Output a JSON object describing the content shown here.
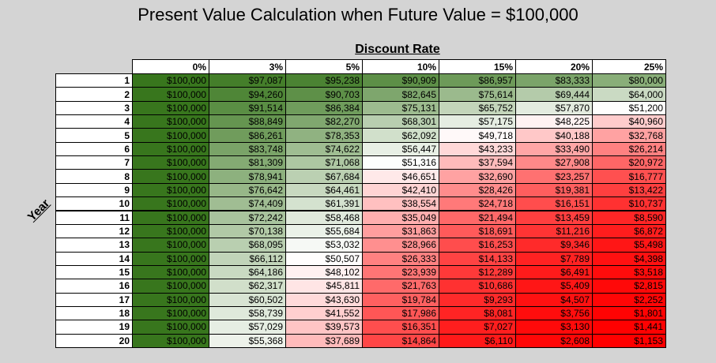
{
  "title": "Present Value Calculation when Future Value = $100,000",
  "column_header": "Discount Rate",
  "row_header": "Year",
  "table": {
    "columns": [
      "0%",
      "3%",
      "5%",
      "10%",
      "15%",
      "20%",
      "25%"
    ],
    "rows": [
      [
        "1",
        "$100,000",
        "$97,087",
        "$95,238",
        "$90,909",
        "$86,957",
        "$83,333",
        "$80,000"
      ],
      [
        "2",
        "$100,000",
        "$94,260",
        "$90,703",
        "$82,645",
        "$75,614",
        "$69,444",
        "$64,000"
      ],
      [
        "3",
        "$100,000",
        "$91,514",
        "$86,384",
        "$75,131",
        "$65,752",
        "$57,870",
        "$51,200"
      ],
      [
        "4",
        "$100,000",
        "$88,849",
        "$82,270",
        "$68,301",
        "$57,175",
        "$48,225",
        "$40,960"
      ],
      [
        "5",
        "$100,000",
        "$86,261",
        "$78,353",
        "$62,092",
        "$49,718",
        "$40,188",
        "$32,768"
      ],
      [
        "6",
        "$100,000",
        "$83,748",
        "$74,622",
        "$56,447",
        "$43,233",
        "$33,490",
        "$26,214"
      ],
      [
        "7",
        "$100,000",
        "$81,309",
        "$71,068",
        "$51,316",
        "$37,594",
        "$27,908",
        "$20,972"
      ],
      [
        "8",
        "$100,000",
        "$78,941",
        "$67,684",
        "$46,651",
        "$32,690",
        "$23,257",
        "$16,777"
      ],
      [
        "9",
        "$100,000",
        "$76,642",
        "$64,461",
        "$42,410",
        "$28,426",
        "$19,381",
        "$13,422"
      ],
      [
        "10",
        "$100,000",
        "$74,409",
        "$61,391",
        "$38,554",
        "$24,718",
        "$16,151",
        "$10,737"
      ],
      [
        "11",
        "$100,000",
        "$72,242",
        "$58,468",
        "$35,049",
        "$21,494",
        "$13,459",
        "$8,590"
      ],
      [
        "12",
        "$100,000",
        "$70,138",
        "$55,684",
        "$31,863",
        "$18,691",
        "$11,216",
        "$6,872"
      ],
      [
        "13",
        "$100,000",
        "$68,095",
        "$53,032",
        "$28,966",
        "$16,253",
        "$9,346",
        "$5,498"
      ],
      [
        "14",
        "$100,000",
        "$66,112",
        "$50,507",
        "$26,333",
        "$14,133",
        "$7,789",
        "$4,398"
      ],
      [
        "15",
        "$100,000",
        "$64,186",
        "$48,102",
        "$23,939",
        "$12,289",
        "$6,491",
        "$3,518"
      ],
      [
        "16",
        "$100,000",
        "$62,317",
        "$45,811",
        "$21,763",
        "$10,686",
        "$5,409",
        "$2,815"
      ],
      [
        "17",
        "$100,000",
        "$60,502",
        "$43,630",
        "$19,784",
        "$9,293",
        "$4,507",
        "$2,252"
      ],
      [
        "18",
        "$100,000",
        "$58,739",
        "$41,552",
        "$17,986",
        "$8,081",
        "$3,756",
        "$1,801"
      ],
      [
        "19",
        "$100,000",
        "$57,029",
        "$39,573",
        "$16,351",
        "$7,027",
        "$3,130",
        "$1,441"
      ],
      [
        "20",
        "$100,000",
        "$55,368",
        "$37,689",
        "$14,864",
        "$6,110",
        "$2,608",
        "$1,153"
      ]
    ]
  }
}
